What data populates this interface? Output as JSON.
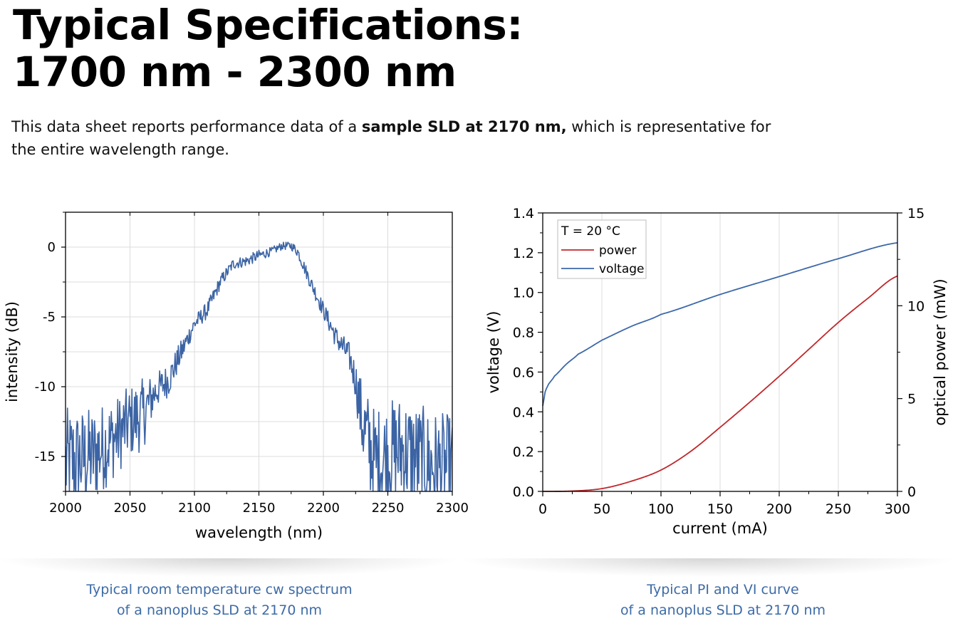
{
  "header": {
    "title_line1": "Typical Specifications:",
    "title_line2": "1700 nm - 2300 nm"
  },
  "intro": {
    "text_before": "This data sheet reports performance data of a ",
    "text_bold": "sample SLD at 2170 nm,",
    "text_after": " which is representative for the entire wavelength range."
  },
  "captions": {
    "left_line1": "Typical room temperature cw spectrum",
    "left_line2": "of a nanoplus SLD at 2170 nm",
    "right_line1": "Typical PI and VI curve",
    "right_line2": "of a nanoplus SLD at 2170 nm"
  },
  "colors": {
    "spectrum": "#3c64a4",
    "power": "#c0282c",
    "voltage": "#3c68a8",
    "caption": "#3d6ba6"
  },
  "chart_data": [
    {
      "type": "line",
      "xlabel": "wavelength (nm)",
      "ylabel": "intensity (dB)",
      "xlim": [
        2000,
        2300
      ],
      "ylim": [
        -17.5,
        2.5
      ],
      "xticks": [
        2000,
        2050,
        2100,
        2150,
        2200,
        2250,
        2300
      ],
      "yticks": [
        0,
        -5,
        -10,
        -15
      ],
      "ytick_labels": [
        "0",
        "-5",
        "-10",
        "-15"
      ],
      "grid": true,
      "series": [
        {
          "x": [
            2000,
            2020,
            2040,
            2050,
            2060,
            2070,
            2080,
            2090,
            2100,
            2110,
            2120,
            2130,
            2140,
            2150,
            2160,
            2168,
            2175,
            2180,
            2190,
            2200,
            2210,
            2220,
            2225,
            2230,
            2240,
            2250,
            2260,
            2270,
            2280,
            2290,
            2300
          ],
          "y": [
            -15.5,
            -15,
            -13.5,
            -12.5,
            -12,
            -10.3,
            -9.5,
            -7.5,
            -5.5,
            -4.5,
            -2.5,
            -1.2,
            -1.0,
            -0.6,
            -0.3,
            0.1,
            0.1,
            -0.3,
            -2.5,
            -4.5,
            -6.5,
            -7.8,
            -9.5,
            -12.5,
            -15.5,
            -15,
            -14.5,
            -15,
            -15.5,
            -15.8,
            -16
          ],
          "noise": [
            4.0,
            3.5,
            2.8,
            2.6,
            2.6,
            1.3,
            1.2,
            0.9,
            0.6,
            0.6,
            0.5,
            0.4,
            0.4,
            0.4,
            0.3,
            0.3,
            0.3,
            0.4,
            0.5,
            0.6,
            0.8,
            1.0,
            1.4,
            3.0,
            4.0,
            4.0,
            4.0,
            4.0,
            4.0,
            4.0,
            4.0
          ]
        }
      ]
    },
    {
      "type": "line",
      "xlabel": "current (mA)",
      "ylabel": "voltage (V)",
      "y2label": "optical power (mW)",
      "xlim": [
        0,
        300
      ],
      "ylim": [
        0,
        1.4
      ],
      "y2lim": [
        0,
        15
      ],
      "xticks": [
        0,
        50,
        100,
        150,
        200,
        250,
        300
      ],
      "yticks": [
        0.0,
        0.2,
        0.4,
        0.6,
        0.8,
        1.0,
        1.2,
        1.4
      ],
      "ytick_labels": [
        "0.0",
        "0.2",
        "0.4",
        "0.6",
        "0.8",
        "1.0",
        "1.2",
        "1.4"
      ],
      "y2ticks": [
        0,
        5,
        10,
        15
      ],
      "grid": true,
      "legend": {
        "title": "T = 20 °C",
        "position": "top-left"
      },
      "series": [
        {
          "name": "power",
          "axis": "right",
          "x": [
            0,
            25,
            50,
            75,
            100,
            125,
            150,
            175,
            200,
            225,
            250,
            275,
            300
          ],
          "y": [
            0,
            0.02,
            0.15,
            0.55,
            1.15,
            2.15,
            3.45,
            4.8,
            6.2,
            7.65,
            9.1,
            10.4,
            11.6
          ]
        },
        {
          "name": "voltage",
          "axis": "left",
          "x": [
            0,
            2,
            5,
            10,
            20,
            30,
            50,
            75,
            100,
            150,
            200,
            250,
            300
          ],
          "y": [
            0.43,
            0.5,
            0.54,
            0.58,
            0.64,
            0.69,
            0.76,
            0.83,
            0.89,
            0.99,
            1.08,
            1.17,
            1.25
          ]
        }
      ]
    }
  ]
}
